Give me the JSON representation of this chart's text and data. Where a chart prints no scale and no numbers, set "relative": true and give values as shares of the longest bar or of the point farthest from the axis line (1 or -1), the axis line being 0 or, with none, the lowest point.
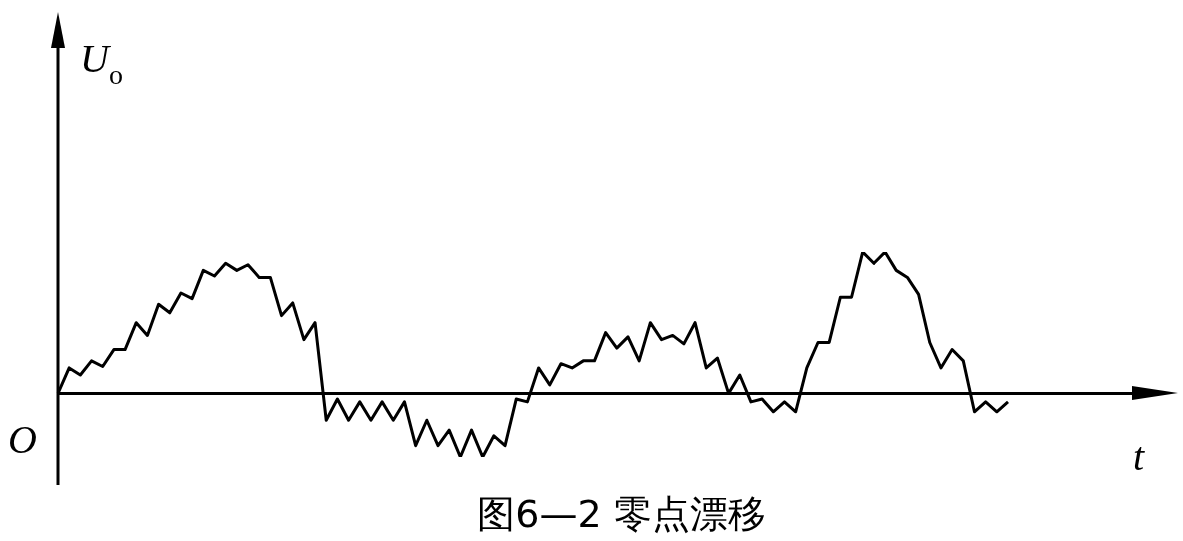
{
  "chart_data": {
    "type": "line",
    "title": "图6—2 零点漂移",
    "xlabel": "t",
    "ylabel": "U$_{o}$",
    "annotations": [
      "O"
    ],
    "relative": true,
    "color": "#000000",
    "marker": "none",
    "legend": false,
    "line_style": "solid",
    "categories": [
      null,
      null,
      null,
      null,
      null,
      null,
      null,
      null,
      null,
      null,
      null,
      null,
      null,
      null,
      null,
      null,
      null,
      null,
      null,
      null,
      null,
      null,
      null,
      null,
      null,
      null,
      null,
      null,
      null,
      null,
      null,
      null,
      null,
      null,
      null,
      null,
      null,
      null,
      null,
      null,
      null,
      null,
      null,
      null,
      null,
      null,
      null,
      null,
      null,
      null,
      null,
      null,
      null,
      null,
      null,
      null,
      null,
      null,
      null,
      null,
      null,
      null,
      null,
      null,
      null,
      null,
      null,
      null,
      null,
      null,
      null,
      null,
      null,
      null,
      null,
      null,
      null,
      null,
      null,
      null,
      null,
      null,
      null,
      null,
      null,
      null
    ],
    "values": [
      0,
      0.18,
      0.13,
      0.23,
      0.19,
      0.31,
      0.31,
      0.5,
      0.41,
      0.63,
      0.57,
      0.71,
      0.67,
      0.87,
      0.83,
      0.92,
      0.87,
      0.91,
      0.82,
      0.82,
      0.55,
      0.64,
      0.38,
      0.5,
      -0.19,
      -0.04,
      -0.19,
      -0.06,
      -0.19,
      -0.06,
      -0.19,
      -0.06,
      -0.37,
      -0.19,
      -0.37,
      -0.26,
      -0.45,
      -0.26,
      -0.45,
      -0.3,
      -0.37,
      -0.04,
      -0.06,
      0.18,
      0.06,
      0.21,
      0.18,
      0.23,
      0.23,
      0.43,
      0.32,
      0.4,
      0.23,
      0.5,
      0.38,
      0.41,
      0.35,
      0.5,
      0.18,
      0.25,
      0,
      0.13,
      -0.06,
      -0.04,
      -0.13,
      -0.06,
      -0.13,
      0.18,
      0.36,
      0.36,
      0.68,
      0.68,
      1,
      0.92,
      1,
      0.87,
      0.82,
      0.7,
      0.36,
      0.18,
      0.31,
      0.23,
      -0.13,
      -0.06,
      -0.13,
      -0.06
    ]
  }
}
